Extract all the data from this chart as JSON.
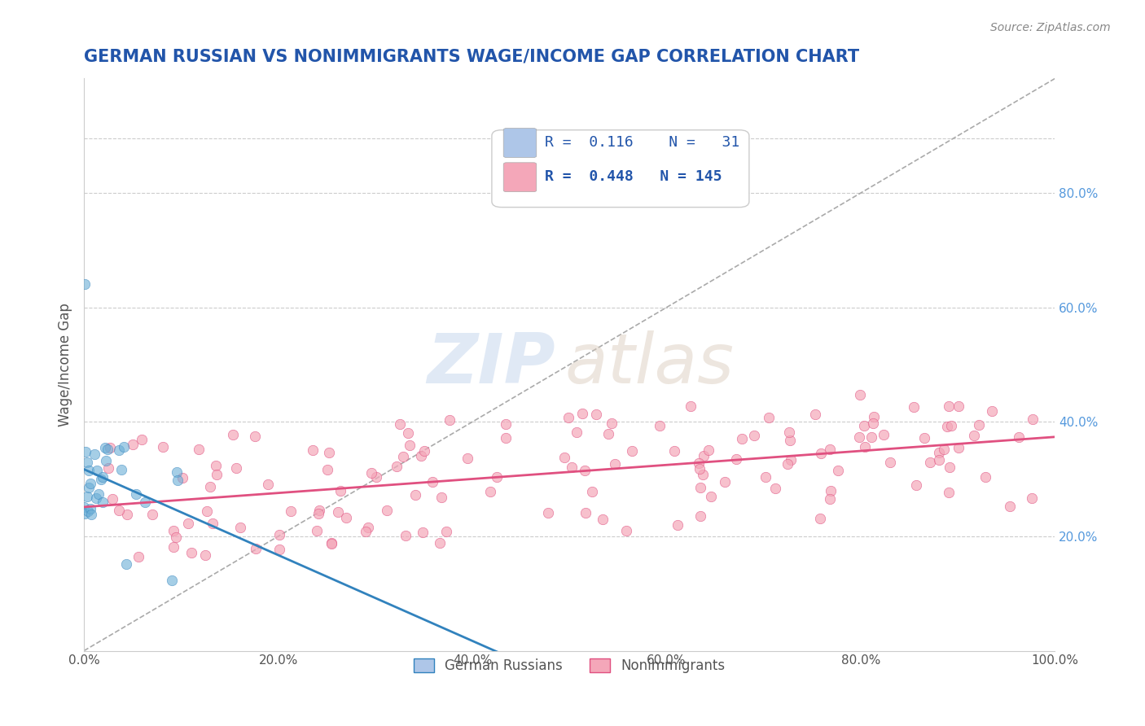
{
  "title": "GERMAN RUSSIAN VS NONIMMIGRANTS WAGE/INCOME GAP CORRELATION CHART",
  "source_text": "Source: ZipAtlas.com",
  "ylabel": "Wage/Income Gap",
  "xlim": [
    0.0,
    1.0
  ],
  "ylim": [
    0.0,
    1.0
  ],
  "background_color": "#ffffff",
  "grid_color": "#cccccc",
  "watermark_zip": "ZIP",
  "watermark_atlas": "atlas",
  "legend": {
    "R_blue": "0.116",
    "N_blue": "31",
    "R_pink": "0.448",
    "N_pink": "145",
    "color_blue": "#aec6e8",
    "color_pink": "#f4a7b9"
  },
  "blue_scatter": {
    "color": "#6aaed6",
    "edgecolor": "#3182bd",
    "size": 80,
    "alpha": 0.6
  },
  "pink_scatter": {
    "color": "#f4a7b9",
    "edgecolor": "#e05080",
    "size": 80,
    "alpha": 0.7
  },
  "title_fontsize": 15,
  "axis_label_color": "#555555",
  "tick_label_color": "#555555",
  "right_tick_color": "#5599dd"
}
